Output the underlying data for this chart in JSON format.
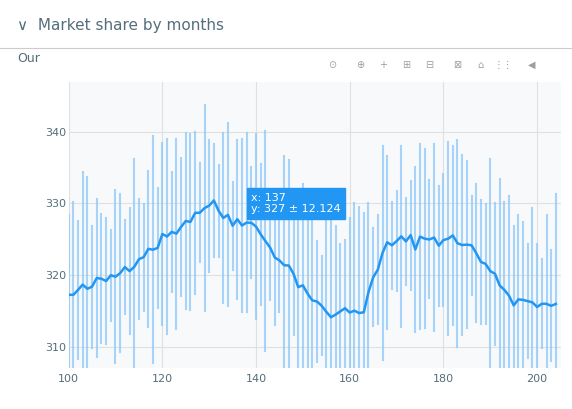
{
  "title": "Market share by months",
  "subtitle": "Our",
  "x_range": [
    100,
    205
  ],
  "y_range": [
    307,
    347
  ],
  "x_ticks": [
    100,
    120,
    140,
    160,
    180,
    200
  ],
  "y_ticks": [
    310,
    320,
    330,
    340
  ],
  "tooltip_x": 137,
  "tooltip_y": 327,
  "tooltip_err": 12.124,
  "tooltip_text": "x: 137\ny: 327 ± 12.124",
  "line_color": "#2196f3",
  "error_color": "#90caf9",
  "tooltip_bg": "#2196f3",
  "tooltip_text_color": "#ffffff",
  "bg_color": "#ffffff",
  "plot_bg_color": "#f8f9fa",
  "grid_color": "#e0e0e0",
  "title_color": "#546e7a",
  "axis_text_color": "#546e7a",
  "seed": 42
}
